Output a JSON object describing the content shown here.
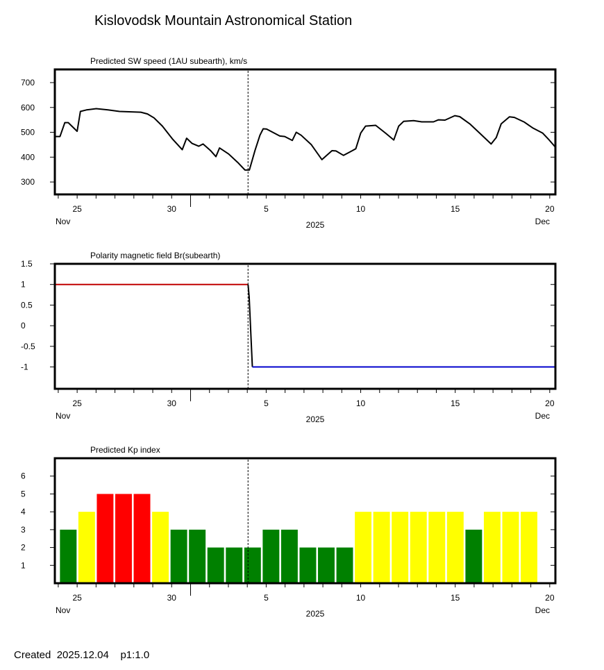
{
  "page_title": "Kislovodsk Mountain Astronomical Station",
  "footer": {
    "created_label": "Created",
    "created_date": "2025.12.04",
    "page_info": "p1:1.0"
  },
  "colors": {
    "speed_line": "#000000",
    "br_positive": "#c00000",
    "br_transition": "#000000",
    "br_negative": "#0000cc",
    "kp_low": "#008000",
    "kp_mid": "#ffff00",
    "kp_high": "#ff0000",
    "current_time_line": "#000000"
  },
  "x_axis": {
    "unit": "days since 2025-11-25",
    "xlim": [
      -1.18,
      25.3
    ],
    "tick_labels": [
      {
        "label": "25",
        "day": 0
      },
      {
        "label": "30",
        "day": 5
      },
      {
        "label": "5",
        "day": 10
      },
      {
        "label": "10",
        "day": 15
      },
      {
        "label": "15",
        "day": 20
      },
      {
        "label": "20",
        "day": 25
      }
    ],
    "month_start_tick_day": 6,
    "month_left": "Nov",
    "month_right": "Dec",
    "year": "2025",
    "current_time_day": 9.04
  },
  "chart_data": [
    {
      "type": "line",
      "title": "Predicted SW speed (1AU subearth), km/s",
      "ylabel": "km/s",
      "ylim": [
        250,
        753
      ],
      "yticks": [
        300,
        400,
        500,
        600,
        700
      ],
      "series": [
        {
          "name": "SW speed",
          "points": [
            [
              -1.17,
              483
            ],
            [
              -0.91,
              483
            ],
            [
              -0.65,
              539
            ],
            [
              -0.47,
              539
            ],
            [
              0,
              504
            ],
            [
              0.17,
              584
            ],
            [
              0.49,
              590
            ],
            [
              1.01,
              595
            ],
            [
              1.63,
              590
            ],
            [
              2.24,
              584
            ],
            [
              3.37,
              581
            ],
            [
              3.72,
              574
            ],
            [
              4.07,
              558
            ],
            [
              4.51,
              525
            ],
            [
              5.03,
              474
            ],
            [
              5.56,
              430
            ],
            [
              5.79,
              476
            ],
            [
              6.08,
              455
            ],
            [
              6.43,
              444
            ],
            [
              6.66,
              453
            ],
            [
              7.05,
              427
            ],
            [
              7.34,
              402
            ],
            [
              7.53,
              437
            ],
            [
              8.01,
              413
            ],
            [
              8.53,
              376
            ],
            [
              8.88,
              348
            ],
            [
              9.11,
              348
            ],
            [
              9.41,
              427
            ],
            [
              9.67,
              488
            ],
            [
              9.84,
              514
            ],
            [
              10.02,
              513
            ],
            [
              10.72,
              485
            ],
            [
              10.98,
              483
            ],
            [
              11.38,
              467
            ],
            [
              11.59,
              500
            ],
            [
              11.85,
              488
            ],
            [
              12.38,
              451
            ],
            [
              12.95,
              390
            ],
            [
              13.48,
              426
            ],
            [
              13.69,
              425
            ],
            [
              14.09,
              407
            ],
            [
              14.48,
              423
            ],
            [
              14.74,
              434
            ],
            [
              15.0,
              497
            ],
            [
              15.26,
              525
            ],
            [
              15.79,
              528
            ],
            [
              16.31,
              497
            ],
            [
              16.75,
              469
            ],
            [
              17.01,
              525
            ],
            [
              17.27,
              544
            ],
            [
              17.8,
              547
            ],
            [
              18.23,
              542
            ],
            [
              18.85,
              542
            ],
            [
              19.11,
              550
            ],
            [
              19.46,
              549
            ],
            [
              19.98,
              567
            ],
            [
              20.24,
              563
            ],
            [
              20.77,
              534
            ],
            [
              21.29,
              497
            ],
            [
              21.9,
              453
            ],
            [
              22.17,
              479
            ],
            [
              22.43,
              534
            ],
            [
              22.87,
              562
            ],
            [
              23.13,
              560
            ],
            [
              23.66,
              541
            ],
            [
              24.09,
              518
            ],
            [
              24.62,
              497
            ],
            [
              24.97,
              469
            ],
            [
              25.3,
              440
            ]
          ]
        }
      ]
    },
    {
      "type": "line",
      "title": "Polarity magnetic field  Br(subearth)",
      "ylim": [
        -1.53,
        1.5
      ],
      "yticks": [
        {
          "v": 1.5,
          "label": "1.5"
        },
        {
          "v": 1,
          "label": "1"
        },
        {
          "v": 0.5,
          "label": "0.5"
        },
        {
          "v": 0,
          "label": "0"
        },
        {
          "v": -0.5,
          "label": "-0.5"
        },
        {
          "v": -1,
          "label": "-1"
        }
      ],
      "series": [
        {
          "name": "positive",
          "color_key": "br_positive",
          "points": [
            [
              -1.18,
              1
            ],
            [
              9.04,
              1
            ]
          ]
        },
        {
          "name": "transition",
          "color_key": "br_transition",
          "points": [
            [
              9.04,
              1
            ],
            [
              9.1,
              0.7
            ],
            [
              9.2,
              -0.3
            ],
            [
              9.27,
              -1
            ]
          ]
        },
        {
          "name": "negative",
          "color_key": "br_negative",
          "points": [
            [
              9.27,
              -1
            ],
            [
              25.3,
              -1
            ]
          ]
        }
      ]
    },
    {
      "type": "bar",
      "title": "Predicted Kp index",
      "ylim": [
        0,
        7
      ],
      "yticks": [
        1,
        2,
        3,
        4,
        5,
        6
      ],
      "categories": [
        "Nov 24",
        "Nov 25",
        "Nov 26",
        "Nov 27",
        "Nov 28",
        "Nov 29",
        "Nov 30",
        "Dec 1",
        "Dec 2",
        "Dec 3",
        "Dec 4",
        "Dec 5",
        "Dec 6",
        "Dec 7",
        "Dec 8",
        "Dec 9",
        "Dec 10",
        "Dec 11",
        "Dec 12",
        "Dec 13",
        "Dec 14",
        "Dec 15",
        "Dec 16",
        "Dec 17",
        "Dec 18",
        "Dec 19"
      ],
      "values": [
        3,
        4,
        5,
        5,
        5,
        4,
        3,
        3,
        2,
        2,
        2,
        3,
        3,
        2,
        2,
        2,
        4,
        4,
        4,
        4,
        4,
        4,
        3,
        4,
        4,
        4
      ]
    }
  ]
}
